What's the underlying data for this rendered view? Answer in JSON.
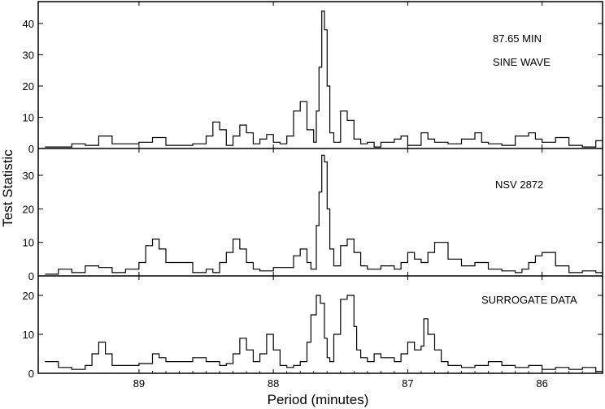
{
  "chart_data": {
    "type": "line",
    "style": "step",
    "x_direction": "reversed",
    "xlabel": "Period (minutes)",
    "ylabel": "Test Statistic",
    "xlim": [
      89.75,
      85.55
    ],
    "x_ticks": [
      89,
      88,
      87,
      86
    ],
    "panels": [
      {
        "annotations": [
          "87.65 MIN",
          "SINE WAVE"
        ],
        "ylim": [
          0,
          47
        ],
        "y_ticks": [
          0,
          10,
          20,
          30,
          40
        ],
        "x": [
          89.7,
          89.5,
          89.4,
          89.3,
          89.2,
          89.0,
          88.9,
          88.8,
          88.6,
          88.5,
          88.45,
          88.4,
          88.35,
          88.3,
          88.25,
          88.2,
          88.15,
          88.1,
          88.05,
          88.0,
          87.95,
          87.9,
          87.85,
          87.8,
          87.75,
          87.7,
          87.68,
          87.66,
          87.64,
          87.62,
          87.6,
          87.58,
          87.55,
          87.5,
          87.45,
          87.4,
          87.35,
          87.3,
          87.25,
          87.2,
          87.1,
          87.05,
          87.0,
          86.9,
          86.85,
          86.8,
          86.7,
          86.6,
          86.5,
          86.45,
          86.4,
          86.3,
          86.2,
          86.1,
          86.05,
          86.0,
          85.9,
          85.8,
          85.7,
          85.6
        ],
        "y": [
          0.5,
          1.5,
          1,
          4,
          1.5,
          2,
          3.5,
          1,
          1.5,
          4,
          8.5,
          6,
          1,
          4,
          7.5,
          5,
          1.5,
          3,
          4.5,
          2,
          1.5,
          4,
          12,
          15,
          6,
          2,
          12,
          26,
          44,
          38,
          20,
          5,
          2,
          12,
          9,
          3,
          1.5,
          2,
          0.5,
          2,
          3,
          4,
          1,
          5,
          3,
          2,
          1.5,
          3,
          5,
          2,
          1.5,
          1,
          4,
          5,
          3,
          2,
          3.5,
          1,
          0.5,
          2.5
        ]
      },
      {
        "annotations": [
          "NSV 2872"
        ],
        "ylim": [
          0,
          38
        ],
        "y_ticks": [
          0,
          10,
          20,
          30
        ],
        "x": [
          89.7,
          89.6,
          89.5,
          89.4,
          89.3,
          89.2,
          89.1,
          89.0,
          88.95,
          88.9,
          88.85,
          88.8,
          88.7,
          88.6,
          88.5,
          88.45,
          88.4,
          88.35,
          88.3,
          88.25,
          88.2,
          88.15,
          88.1,
          88.0,
          87.9,
          87.85,
          87.8,
          87.75,
          87.72,
          87.68,
          87.66,
          87.64,
          87.62,
          87.6,
          87.58,
          87.55,
          87.5,
          87.45,
          87.4,
          87.35,
          87.3,
          87.2,
          87.1,
          87.05,
          87.0,
          86.95,
          86.9,
          86.85,
          86.8,
          86.7,
          86.6,
          86.5,
          86.4,
          86.3,
          86.2,
          86.15,
          86.1,
          86.05,
          86.0,
          85.9,
          85.8,
          85.7,
          85.6
        ],
        "y": [
          0.5,
          2,
          1,
          3,
          2.5,
          1,
          2,
          4,
          9,
          11,
          8,
          4,
          4,
          1,
          2,
          1,
          4,
          7,
          11,
          8,
          4,
          2,
          1.5,
          2.5,
          2.5,
          6,
          8,
          4,
          2,
          15,
          25,
          36,
          34,
          20,
          8,
          3,
          9,
          11,
          7,
          3,
          2,
          3,
          2,
          4,
          7,
          5,
          4,
          7,
          10,
          5,
          3,
          4,
          2,
          1.5,
          1,
          2,
          4,
          6,
          7,
          3,
          1,
          1.5,
          1
        ]
      },
      {
        "annotations": [
          "SURROGATE DATA"
        ],
        "ylim": [
          0,
          25
        ],
        "y_ticks": [
          0,
          10,
          20
        ],
        "x": [
          89.7,
          89.6,
          89.5,
          89.4,
          89.35,
          89.3,
          89.25,
          89.2,
          89.1,
          89.0,
          88.9,
          88.85,
          88.8,
          88.7,
          88.6,
          88.5,
          88.4,
          88.35,
          88.3,
          88.25,
          88.2,
          88.15,
          88.1,
          88.05,
          88.0,
          87.95,
          87.9,
          87.85,
          87.8,
          87.75,
          87.72,
          87.68,
          87.65,
          87.62,
          87.6,
          87.58,
          87.55,
          87.5,
          87.45,
          87.4,
          87.38,
          87.35,
          87.3,
          87.25,
          87.2,
          87.1,
          87.05,
          87.0,
          86.95,
          86.9,
          86.88,
          86.85,
          86.8,
          86.75,
          86.7,
          86.6,
          86.5,
          86.4,
          86.3,
          86.2,
          86.1,
          86.0,
          85.9,
          85.8,
          85.7,
          85.6
        ],
        "y": [
          3,
          1.5,
          1,
          2,
          5,
          8,
          5,
          2,
          2,
          2.5,
          5,
          4,
          3,
          3,
          4,
          3,
          2,
          2.5,
          5,
          9,
          6,
          3,
          5,
          10,
          6,
          2,
          1.5,
          2,
          3,
          8,
          15,
          20,
          18,
          9,
          4,
          3,
          10,
          19,
          20,
          12,
          6,
          4,
          3,
          5,
          4,
          3,
          5,
          8,
          6,
          7,
          14,
          10,
          6,
          3,
          2,
          1.5,
          2,
          3,
          2,
          1.5,
          2,
          1,
          1.5,
          1,
          1.5,
          0.5
        ]
      }
    ]
  }
}
